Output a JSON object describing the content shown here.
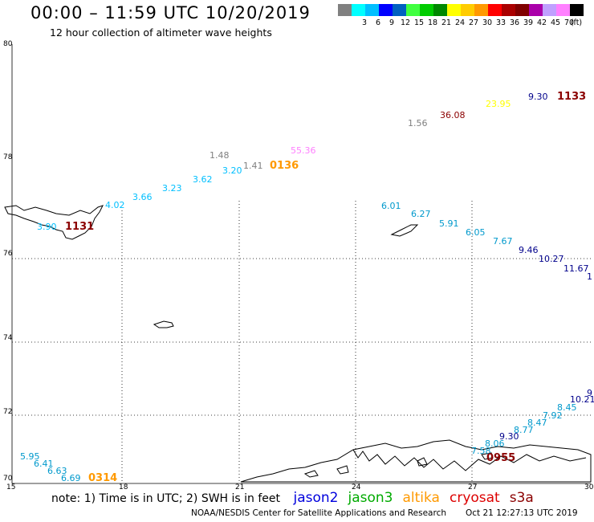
{
  "title": "00:00 – 11:59 UTC 10/20/2019",
  "subtitle": "12 hour collection of altimeter wave heights",
  "color_scale": {
    "unit": "(ft)",
    "swatches": [
      {
        "color": "#808080",
        "label": ""
      },
      {
        "color": "#00ffff",
        "label": "3"
      },
      {
        "color": "#00bfff",
        "label": "6"
      },
      {
        "color": "#0000ff",
        "label": "9"
      },
      {
        "color": "#0060c0",
        "label": "12"
      },
      {
        "color": "#40ff40",
        "label": "15"
      },
      {
        "color": "#00cc00",
        "label": "18"
      },
      {
        "color": "#008800",
        "label": "21"
      },
      {
        "color": "#ffff00",
        "label": "24"
      },
      {
        "color": "#ffcc00",
        "label": "27"
      },
      {
        "color": "#ff9900",
        "label": "30"
      },
      {
        "color": "#ff0000",
        "label": "33"
      },
      {
        "color": "#aa0000",
        "label": "36"
      },
      {
        "color": "#800000",
        "label": "39"
      },
      {
        "color": "#aa00aa",
        "label": "42"
      },
      {
        "color": "#c0a0ff",
        "label": "45"
      },
      {
        "color": "#ff80ff",
        "label": "70"
      },
      {
        "color": "#000000",
        "label": ""
      }
    ]
  },
  "axes": {
    "lat_labels": [
      "80",
      "78",
      "76",
      "74",
      "72",
      "70"
    ],
    "lon_labels": [
      "15",
      "18",
      "21",
      "24",
      "27",
      "30"
    ]
  },
  "wave_heights": [
    {
      "text": "9.30",
      "color": "#00008b"
    },
    {
      "text": "1133",
      "color": "#8b0000",
      "time": true
    },
    {
      "text": "23.95",
      "color": "#ffff00"
    },
    {
      "text": "36.08",
      "color": "#8b0000"
    },
    {
      "text": "1.56",
      "color": "#808080"
    },
    {
      "text": "1.48",
      "color": "#808080"
    },
    {
      "text": "55.36",
      "color": "#ff80ff"
    },
    {
      "text": "1.41",
      "color": "#808080"
    },
    {
      "text": "0136",
      "color": "#ff9900",
      "time": true
    },
    {
      "text": "3.20",
      "color": "#00bfff"
    },
    {
      "text": "3.62",
      "color": "#00bfff"
    },
    {
      "text": "3.23",
      "color": "#00bfff"
    },
    {
      "text": "3.66",
      "color": "#00bfff"
    },
    {
      "text": "4.02",
      "color": "#00bfff"
    },
    {
      "text": "3.90",
      "color": "#00bfff"
    },
    {
      "text": "1131",
      "color": "#8b0000",
      "time": true
    },
    {
      "text": "6.01",
      "color": "#0099cc"
    },
    {
      "text": "6.27",
      "color": "#0099cc"
    },
    {
      "text": "5.91",
      "color": "#0099cc"
    },
    {
      "text": "6.05",
      "color": "#0099cc"
    },
    {
      "text": "7.67",
      "color": "#0099cc"
    },
    {
      "text": "9.46",
      "color": "#00008b"
    },
    {
      "text": "10.27",
      "color": "#00008b"
    },
    {
      "text": "11.67",
      "color": "#00008b"
    },
    {
      "text": "1",
      "color": "#00008b"
    },
    {
      "text": "9",
      "color": "#00008b"
    },
    {
      "text": "10.21",
      "color": "#00008b"
    },
    {
      "text": "8.45",
      "color": "#0099cc"
    },
    {
      "text": "7.92",
      "color": "#0099cc"
    },
    {
      "text": "8.47",
      "color": "#0099cc"
    },
    {
      "text": "8.77",
      "color": "#0099cc"
    },
    {
      "text": "9.30",
      "color": "#00008b"
    },
    {
      "text": "8.06",
      "color": "#0099cc"
    },
    {
      "text": "7.58",
      "color": "#0099cc"
    },
    {
      "text": "0955",
      "color": "#8b0000",
      "time": true
    },
    {
      "text": "5.95",
      "color": "#0099cc"
    },
    {
      "text": "6.41",
      "color": "#0099cc"
    },
    {
      "text": "6.63",
      "color": "#0099cc"
    },
    {
      "text": "6.69",
      "color": "#0099cc"
    },
    {
      "text": "0314",
      "color": "#ff9900",
      "time": true
    }
  ],
  "note": {
    "text": "note: 1) Time is in UTC; 2) SWH is in feet",
    "satellites": [
      {
        "name": "jason2",
        "color": "#0000dd"
      },
      {
        "name": "jason3",
        "color": "#00aa00"
      },
      {
        "name": "altika",
        "color": "#ff9900"
      },
      {
        "name": "cryosat",
        "color": "#dd0000"
      },
      {
        "name": "s3a",
        "color": "#8b0000"
      }
    ]
  },
  "footer": {
    "credit": "NOAA/NESDIS Center for Satellite Applications and Research",
    "generated": "Oct 21 12:27:13 UTC 2019"
  }
}
